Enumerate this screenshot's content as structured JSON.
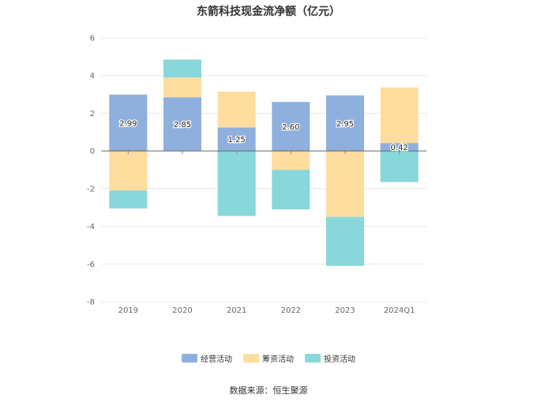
{
  "chart_data": {
    "type": "bar",
    "stacked": true,
    "title": "东箭科技现金流净额（亿元）",
    "categories": [
      "2019",
      "2020",
      "2021",
      "2022",
      "2023",
      "2024Q1"
    ],
    "series": [
      {
        "name": "经营活动",
        "color": "#8fb0dc",
        "values": [
          2.99,
          2.85,
          1.25,
          2.6,
          2.95,
          0.42
        ],
        "labels": [
          "2.99",
          "2.85",
          "1.25",
          "2.60",
          "2.95",
          "0.42"
        ]
      },
      {
        "name": "筹资活动",
        "color": "#fedd9e",
        "values": [
          -2.1,
          1.05,
          1.9,
          -1.0,
          -3.5,
          2.95
        ]
      },
      {
        "name": "投资活动",
        "color": "#88d7da",
        "values": [
          -0.95,
          0.95,
          -3.45,
          -2.1,
          -2.6,
          -1.65
        ]
      }
    ],
    "yticks": [
      "6",
      "4",
      "2",
      "0",
      "-2",
      "-4",
      "-6",
      "-8"
    ],
    "ylim": [
      -8,
      6
    ],
    "grid": true,
    "legend_position": "bottom"
  },
  "source_text": "数据来源：恒生聚源"
}
